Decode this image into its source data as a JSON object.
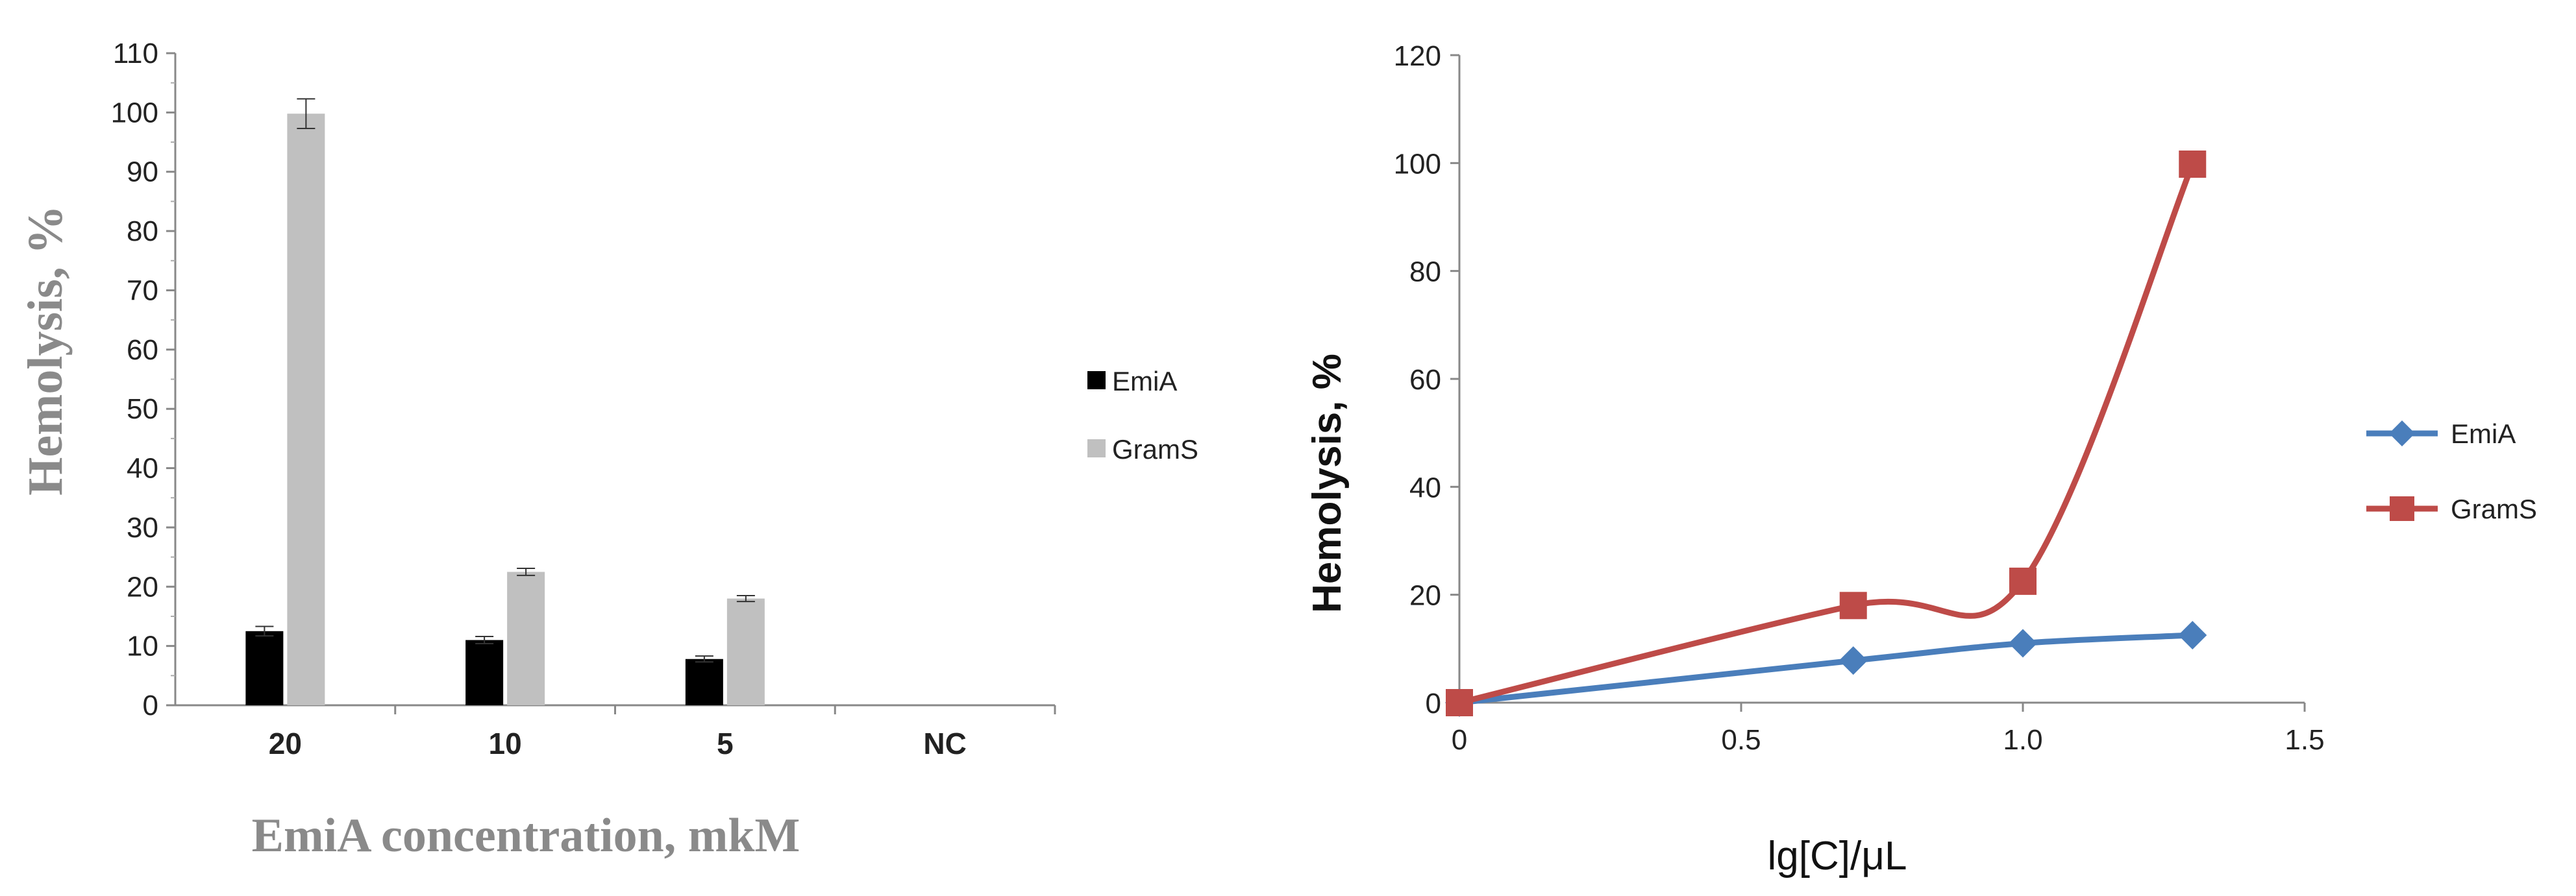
{
  "chart_data": [
    {
      "type": "bar",
      "ylabel": "Hemolysis, %",
      "xlabel": "EmiA concentration, mkM",
      "categories": [
        "20",
        "10",
        "5",
        "NC"
      ],
      "ylim": [
        0,
        110
      ],
      "yticks": [
        "0",
        "10",
        "20",
        "30",
        "40",
        "50",
        "60",
        "70",
        "80",
        "90",
        "100",
        "110"
      ],
      "legend_position": "right",
      "series": [
        {
          "name": "EmiA",
          "color": "#000000",
          "values": [
            12.5,
            11,
            7.8,
            0
          ],
          "errors": [
            0.8,
            0.6,
            0.5,
            0
          ]
        },
        {
          "name": "GramS",
          "color": "#c0c0c0",
          "values": [
            99.8,
            22.5,
            18,
            0
          ],
          "errors": [
            2.5,
            0.6,
            0.5,
            0
          ]
        }
      ]
    },
    {
      "type": "line",
      "ylabel": "Hemolysis, %",
      "xlabel": "lg[C]/μL",
      "xlim": [
        0,
        1.5
      ],
      "ylim": [
        0,
        120
      ],
      "xticks": [
        "0",
        "0.5",
        "1.0",
        "1.5"
      ],
      "yticks": [
        "0",
        "20",
        "40",
        "60",
        "80",
        "100",
        "120"
      ],
      "legend_position": "right",
      "series": [
        {
          "name": "EmiA",
          "color": "#4a7ebb",
          "marker": "diamond",
          "x": [
            0,
            0.699,
            1.0,
            1.301
          ],
          "y": [
            0,
            7.8,
            11,
            12.5
          ]
        },
        {
          "name": "GramS",
          "color": "#be4b48",
          "marker": "square",
          "x": [
            0,
            0.699,
            1.0,
            1.301
          ],
          "y": [
            0,
            18,
            22.5,
            99.8
          ]
        }
      ]
    }
  ]
}
